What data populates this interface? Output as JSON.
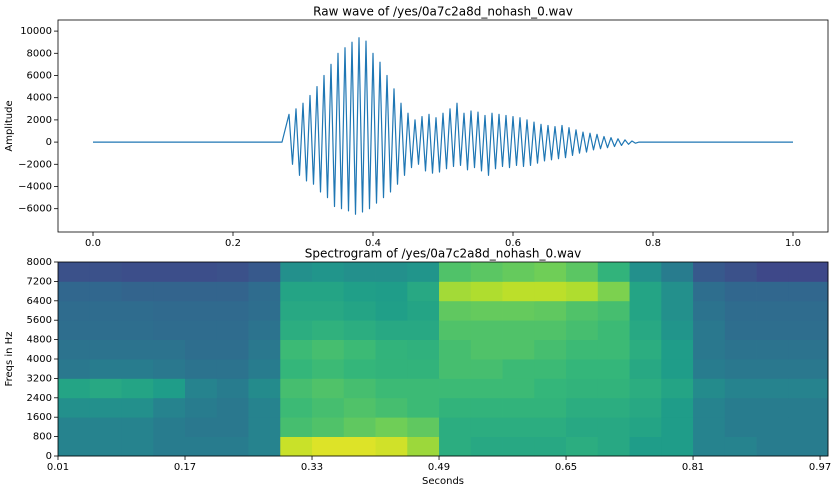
{
  "chart_data": [
    {
      "type": "line",
      "title": "Raw wave of /yes/0a7c2a8d_nohash_0.wav",
      "y_label": "Amplitude",
      "color": "#1f77b4",
      "x": [
        0,
        0.1,
        0.2,
        0.27,
        0.28,
        0.285,
        0.29,
        0.295,
        0.3,
        0.305,
        0.31,
        0.315,
        0.32,
        0.325,
        0.33,
        0.335,
        0.34,
        0.345,
        0.35,
        0.355,
        0.36,
        0.365,
        0.37,
        0.375,
        0.38,
        0.385,
        0.39,
        0.395,
        0.4,
        0.405,
        0.41,
        0.415,
        0.42,
        0.425,
        0.43,
        0.435,
        0.44,
        0.445,
        0.45,
        0.455,
        0.46,
        0.465,
        0.47,
        0.475,
        0.48,
        0.485,
        0.49,
        0.495,
        0.5,
        0.505,
        0.51,
        0.515,
        0.52,
        0.525,
        0.53,
        0.535,
        0.54,
        0.545,
        0.55,
        0.555,
        0.56,
        0.565,
        0.57,
        0.575,
        0.58,
        0.585,
        0.59,
        0.595,
        0.6,
        0.605,
        0.61,
        0.615,
        0.62,
        0.625,
        0.63,
        0.635,
        0.64,
        0.645,
        0.65,
        0.655,
        0.66,
        0.665,
        0.67,
        0.675,
        0.68,
        0.685,
        0.69,
        0.695,
        0.7,
        0.705,
        0.71,
        0.715,
        0.72,
        0.725,
        0.73,
        0.735,
        0.74,
        0.745,
        0.75,
        0.755,
        0.76,
        0.765,
        0.77,
        0.775,
        0.78,
        0.9,
        1.0
      ],
      "values": [
        0,
        0,
        0,
        0,
        2500,
        -2000,
        3000,
        -3000,
        3500,
        -3500,
        4200,
        -3800,
        5000,
        -4500,
        6000,
        -5000,
        7000,
        -5800,
        8000,
        -6000,
        8500,
        -6200,
        9000,
        -6500,
        9400,
        -6300,
        9100,
        -6000,
        8000,
        -5500,
        7200,
        -5000,
        6000,
        -4500,
        4800,
        -3800,
        3500,
        -3000,
        2600,
        -2300,
        2000,
        -2000,
        2300,
        -2600,
        2500,
        -2800,
        2200,
        -2700,
        2600,
        -2400,
        3000,
        -2200,
        3500,
        -2100,
        2600,
        -2500,
        2800,
        -2300,
        2700,
        -2600,
        2400,
        -3000,
        2600,
        -2400,
        2500,
        -2200,
        2400,
        -2300,
        2300,
        -2100,
        2200,
        -2200,
        2000,
        -2100,
        1800,
        -1900,
        1600,
        -1700,
        1500,
        -1600,
        1400,
        -1500,
        1500,
        -1400,
        1300,
        -1200,
        1100,
        -1000,
        900,
        -900,
        800,
        -700,
        700,
        -600,
        500,
        -500,
        400,
        -400,
        300,
        -300,
        200,
        -200,
        100,
        -100,
        0,
        0,
        0
      ],
      "xlim": [
        -0.05,
        1.05
      ],
      "xticks": [
        {
          "value": 0,
          "label": "0.0"
        },
        0.2,
        0.4,
        0.6,
        0.8,
        {
          "value": 1,
          "label": "1.0"
        }
      ],
      "ylim": [
        -8100,
        11000
      ],
      "yticks": [
        {
          "value": -6000,
          "label": "−6000"
        },
        {
          "value": -4000,
          "label": "−4000"
        },
        {
          "value": -2000,
          "label": "−2000"
        },
        0,
        2000,
        4000,
        6000,
        8000,
        10000
      ]
    },
    {
      "type": "heatmap",
      "title": "Spectrogram of /yes/0a7c2a8d_nohash_0.wav",
      "x_label": "Seconds",
      "y_label": "Freqs in Hz",
      "colormap": "viridis",
      "xbins": [
        0.01,
        0.05,
        0.09,
        0.13,
        0.17,
        0.21,
        0.25,
        0.29,
        0.33,
        0.37,
        0.41,
        0.45,
        0.49,
        0.53,
        0.57,
        0.61,
        0.65,
        0.69,
        0.73,
        0.77,
        0.81,
        0.85,
        0.89,
        0.93,
        0.98
      ],
      "ybins": [
        0,
        800,
        1600,
        2400,
        3200,
        4000,
        4800,
        5600,
        6400,
        7200,
        8000
      ],
      "values": [
        [
          0.45,
          0.45,
          0.45,
          0.42,
          0.42,
          0.42,
          0.45,
          0.92,
          0.95,
          0.95,
          0.93,
          0.85,
          0.62,
          0.6,
          0.6,
          0.6,
          0.62,
          0.6,
          0.55,
          0.55,
          0.45,
          0.45,
          0.42,
          0.42
        ],
        [
          0.45,
          0.45,
          0.45,
          0.42,
          0.4,
          0.4,
          0.45,
          0.7,
          0.72,
          0.75,
          0.78,
          0.75,
          0.62,
          0.62,
          0.62,
          0.62,
          0.6,
          0.6,
          0.58,
          0.55,
          0.45,
          0.42,
          0.42,
          0.42
        ],
        [
          0.5,
          0.5,
          0.5,
          0.45,
          0.42,
          0.4,
          0.45,
          0.68,
          0.7,
          0.72,
          0.7,
          0.68,
          0.65,
          0.65,
          0.65,
          0.65,
          0.62,
          0.62,
          0.6,
          0.55,
          0.45,
          0.42,
          0.42,
          0.42
        ],
        [
          0.58,
          0.6,
          0.58,
          0.55,
          0.45,
          0.42,
          0.48,
          0.7,
          0.72,
          0.7,
          0.68,
          0.68,
          0.68,
          0.68,
          0.68,
          0.66,
          0.65,
          0.65,
          0.62,
          0.58,
          0.48,
          0.45,
          0.45,
          0.45
        ],
        [
          0.4,
          0.42,
          0.42,
          0.4,
          0.38,
          0.38,
          0.42,
          0.66,
          0.68,
          0.66,
          0.65,
          0.65,
          0.7,
          0.7,
          0.68,
          0.68,
          0.66,
          0.66,
          0.6,
          0.55,
          0.42,
          0.4,
          0.4,
          0.4
        ],
        [
          0.38,
          0.38,
          0.38,
          0.38,
          0.36,
          0.36,
          0.4,
          0.68,
          0.7,
          0.68,
          0.65,
          0.64,
          0.7,
          0.72,
          0.72,
          0.7,
          0.68,
          0.68,
          0.62,
          0.55,
          0.4,
          0.38,
          0.38,
          0.38
        ],
        [
          0.36,
          0.36,
          0.36,
          0.35,
          0.35,
          0.35,
          0.38,
          0.62,
          0.64,
          0.62,
          0.6,
          0.6,
          0.72,
          0.72,
          0.72,
          0.72,
          0.7,
          0.68,
          0.6,
          0.52,
          0.4,
          0.36,
          0.36,
          0.36
        ],
        [
          0.35,
          0.35,
          0.35,
          0.34,
          0.34,
          0.34,
          0.36,
          0.6,
          0.6,
          0.58,
          0.56,
          0.58,
          0.75,
          0.76,
          0.76,
          0.75,
          0.72,
          0.7,
          0.58,
          0.5,
          0.38,
          0.35,
          0.35,
          0.35
        ],
        [
          0.33,
          0.33,
          0.32,
          0.32,
          0.32,
          0.32,
          0.35,
          0.58,
          0.58,
          0.56,
          0.55,
          0.6,
          0.86,
          0.88,
          0.9,
          0.9,
          0.88,
          0.8,
          0.58,
          0.5,
          0.36,
          0.33,
          0.33,
          0.33
        ],
        [
          0.25,
          0.25,
          0.24,
          0.24,
          0.24,
          0.25,
          0.28,
          0.5,
          0.52,
          0.5,
          0.5,
          0.52,
          0.72,
          0.74,
          0.76,
          0.78,
          0.74,
          0.65,
          0.5,
          0.42,
          0.28,
          0.25,
          0.22,
          0.22
        ]
      ],
      "xlim": [
        0.01,
        0.98
      ],
      "xticks": [
        0.01,
        0.17,
        0.33,
        0.49,
        0.65,
        0.81,
        0.97
      ],
      "ylim": [
        0,
        8000
      ],
      "yticks": [
        0,
        800,
        1600,
        2400,
        3200,
        4000,
        4800,
        5600,
        6400,
        7200,
        8000
      ]
    }
  ]
}
